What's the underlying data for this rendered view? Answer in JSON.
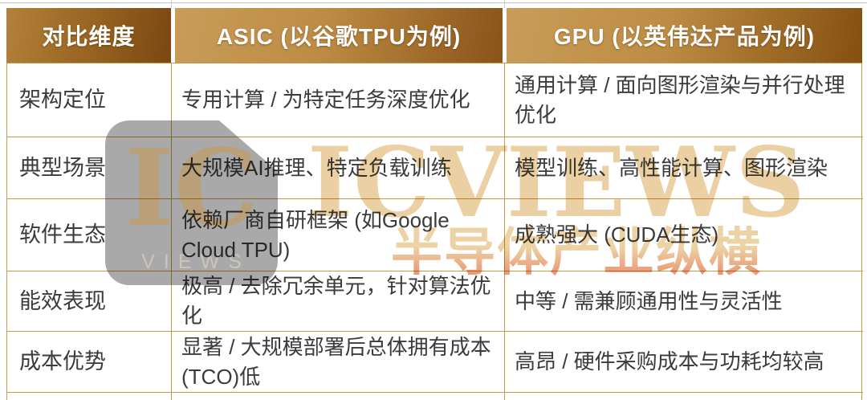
{
  "table": {
    "headers": [
      {
        "label": "对比维度"
      },
      {
        "label": "ASIC (以谷歌TPU为例)"
      },
      {
        "label": "GPU (以英伟达产品为例)"
      }
    ],
    "rows": [
      {
        "dimension": "架构定位",
        "asic": "专用计算 / 为特定任务深度优化",
        "gpu": "通用计算 / 面向图形渲染与并行处理优化"
      },
      {
        "dimension": "典型场景",
        "asic": "大规模AI推理、特定负载训练",
        "gpu": "模型训练、高性能计算、图形渲染"
      },
      {
        "dimension": "软件生态",
        "asic": "依赖厂商自研框架 (如Google Cloud TPU)",
        "gpu": "成熟强大 (CUDA生态)"
      },
      {
        "dimension": "能效表现",
        "asic": "极高 / 去除冗余单元，针对算法优化",
        "gpu": "中等 / 需兼顾通用性与灵活性"
      },
      {
        "dimension": "成本优势",
        "asic": "显著 / 大规模部署后总体拥有成本(TCO)低",
        "gpu": "高昂 / 硬件采购成本与功耗均较高"
      }
    ]
  },
  "watermark": {
    "badge_letters": "IC",
    "badge_sub": "VIEWS",
    "brand": "ICVIEWS",
    "brand_cn": "半导体产业纵横"
  },
  "colors": {
    "header_light": "#c99c58",
    "header_dark": "#85500f",
    "border": "#c59a45",
    "body_text": "#3b3b3b",
    "watermark_tan": "#ead0a2",
    "watermark_gray": "#a9a9a9"
  }
}
